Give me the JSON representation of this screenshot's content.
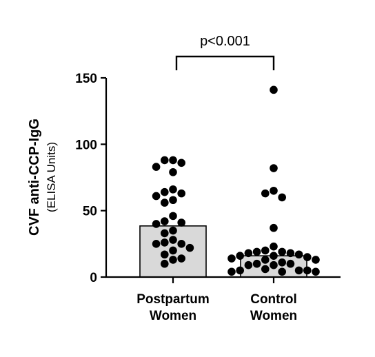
{
  "chart_data": {
    "type": "bar",
    "categories": [
      "Postpartum\nWomen",
      "Control\nWomen"
    ],
    "values": [
      38.5,
      16
    ],
    "series_points": [
      {
        "name": "Postpartum Women",
        "points": [
          88,
          88,
          86,
          83,
          79,
          66,
          64,
          63,
          61,
          58,
          56,
          46,
          42,
          41,
          40,
          35,
          33,
          28,
          26,
          25,
          25,
          22,
          20,
          17,
          14,
          13,
          10
        ]
      },
      {
        "name": "Control Women",
        "points": [
          141,
          82,
          65,
          63,
          60,
          37,
          23,
          20,
          19,
          19,
          18,
          18,
          17,
          16,
          16,
          15,
          14,
          13,
          13,
          11,
          10,
          10,
          9,
          9,
          6,
          5,
          5,
          5,
          4,
          4,
          4
        ]
      }
    ],
    "title": "",
    "xlabel": "",
    "ylabel": "CVF anti-CCP-IgG",
    "ylabel_sub": "(ELISA Units)",
    "ylim": [
      0,
      150
    ],
    "yticks": [
      0,
      50,
      100,
      150
    ],
    "grid": false,
    "significance": {
      "label": "p<0.001",
      "between": [
        0,
        1
      ]
    },
    "colors": {
      "bar_fill": "#d9d9d9",
      "bar_stroke": "#000000",
      "point": "#000000",
      "axis": "#000000"
    }
  }
}
